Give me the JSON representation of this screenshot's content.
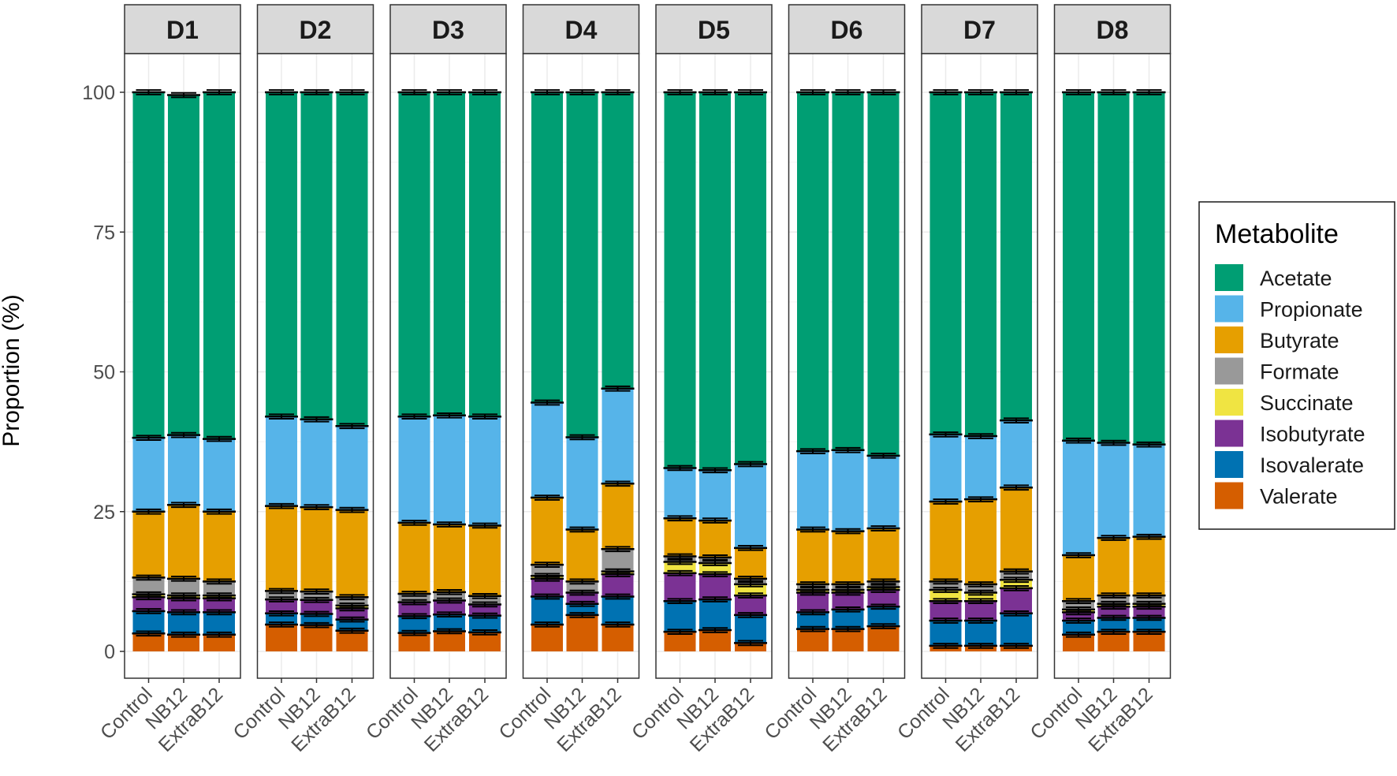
{
  "chart_data": {
    "type": "bar",
    "subtype": "stacked-percent-faceted",
    "ylabel": "Proportion (%)",
    "ylim": [
      0,
      100
    ],
    "yticks": [
      "0",
      "25",
      "50",
      "75",
      "100"
    ],
    "categories": [
      "Control",
      "NB12",
      "ExtraB12"
    ],
    "legend": {
      "title": "Metabolite",
      "position": "right",
      "items": [
        "Acetate",
        "Propionate",
        "Butyrate",
        "Formate",
        "Succinate",
        "Isobutyrate",
        "Isovalerate",
        "Valerate"
      ]
    },
    "colors": {
      "Acetate": "#009e73",
      "Propionate": "#56b4e9",
      "Butyrate": "#e69f00",
      "Formate": "#999999",
      "Succinate": "#f0e442",
      "Isobutyrate": "#7b3294",
      "Isovalerate": "#0072b2",
      "Valerate": "#d55e00"
    },
    "stack_order_bottom_to_top": [
      "Valerate",
      "Isovalerate",
      "Isobutyrate",
      "Succinate",
      "Formate",
      "Butyrate",
      "Propionate",
      "Acetate"
    ],
    "panels": [
      {
        "name": "D1",
        "bars": [
          {
            "category": "Control",
            "values": [
              3.2,
              4.0,
              2.5,
              0.5,
              3.0,
              11.8,
              13.2,
              61.8
            ]
          },
          {
            "category": "NB12",
            "values": [
              3.0,
              4.0,
              2.5,
              0.5,
              3.0,
              13.2,
              12.5,
              60.8
            ]
          },
          {
            "category": "ExtraB12",
            "values": [
              3.0,
              4.0,
              2.5,
              0.5,
              2.5,
              12.5,
              13.0,
              62.0
            ]
          }
        ]
      },
      {
        "name": "D2",
        "bars": [
          {
            "category": "Control",
            "values": [
              4.8,
              2.0,
              2.5,
              0.0,
              1.5,
              15.2,
              16.0,
              58.0
            ]
          },
          {
            "category": "NB12",
            "values": [
              4.7,
              2.0,
              2.5,
              0.0,
              1.5,
              15.1,
              15.7,
              58.5
            ]
          },
          {
            "category": "ExtraB12",
            "values": [
              3.7,
              2.0,
              2.0,
              0.5,
              1.5,
              15.6,
              15.0,
              59.7
            ]
          }
        ]
      },
      {
        "name": "D3",
        "bars": [
          {
            "category": "Control",
            "values": [
              3.3,
              3.0,
              2.5,
              0.0,
              1.5,
              12.7,
              19.0,
              58.0
            ]
          },
          {
            "category": "NB12",
            "values": [
              3.6,
              3.0,
              2.5,
              0.0,
              1.5,
              12.1,
              19.5,
              57.8
            ]
          },
          {
            "category": "ExtraB12",
            "values": [
              3.4,
              3.0,
              2.0,
              0.0,
              1.5,
              12.6,
              19.5,
              58.0
            ]
          }
        ]
      },
      {
        "name": "D4",
        "bars": [
          {
            "category": "Control",
            "values": [
              4.8,
              5.0,
              3.2,
              0.5,
              2.0,
              12.0,
              17.0,
              55.5
            ]
          },
          {
            "category": "NB12",
            "values": [
              6.5,
              2.0,
              2.0,
              0.0,
              2.0,
              9.3,
              16.5,
              61.7
            ]
          },
          {
            "category": "ExtraB12",
            "values": [
              4.8,
              5.0,
              4.0,
              0.5,
              4.0,
              11.7,
              17.0,
              53.0
            ]
          }
        ]
      },
      {
        "name": "D5",
        "bars": [
          {
            "category": "Control",
            "values": [
              3.5,
              5.5,
              5.0,
              2.0,
              1.0,
              6.8,
              9.0,
              67.2
            ]
          },
          {
            "category": "NB12",
            "values": [
              3.8,
              5.5,
              4.5,
              2.0,
              1.0,
              6.6,
              9.0,
              67.6
            ]
          },
          {
            "category": "ExtraB12",
            "values": [
              1.5,
              5.0,
              3.5,
              2.0,
              1.0,
              5.5,
              15.0,
              66.5
            ]
          }
        ]
      },
      {
        "name": "D6",
        "bars": [
          {
            "category": "Control",
            "values": [
              4.0,
              3.0,
              3.5,
              0.5,
              1.0,
              9.8,
              14.0,
              64.2
            ]
          },
          {
            "category": "NB12",
            "values": [
              4.0,
              3.5,
              3.0,
              0.5,
              1.0,
              9.5,
              14.5,
              64.0
            ]
          },
          {
            "category": "ExtraB12",
            "values": [
              4.5,
              3.5,
              3.0,
              0.5,
              1.0,
              9.5,
              13.0,
              65.0
            ]
          }
        ]
      },
      {
        "name": "D7",
        "bars": [
          {
            "category": "Control",
            "values": [
              1.0,
              4.5,
              3.5,
              2.0,
              1.5,
              14.3,
              12.0,
              61.2
            ]
          },
          {
            "category": "NB12",
            "values": [
              1.0,
              4.5,
              3.5,
              1.5,
              1.5,
              15.2,
              11.3,
              61.5
            ]
          },
          {
            "category": "ExtraB12",
            "values": [
              1.0,
              5.8,
              4.5,
              1.5,
              1.5,
              15.0,
              12.0,
              58.7
            ]
          }
        ]
      },
      {
        "name": "D8",
        "bars": [
          {
            "category": "Control",
            "values": [
              3.0,
              2.5,
              1.5,
              0.5,
              1.5,
              8.2,
              20.5,
              62.3
            ]
          },
          {
            "category": "NB12",
            "values": [
              3.5,
              2.5,
              2.0,
              0.5,
              1.5,
              10.3,
              17.0,
              62.7
            ]
          },
          {
            "category": "ExtraB12",
            "values": [
              3.5,
              2.5,
              2.0,
              0.5,
              1.5,
              10.5,
              16.5,
              63.0
            ]
          }
        ]
      }
    ]
  }
}
